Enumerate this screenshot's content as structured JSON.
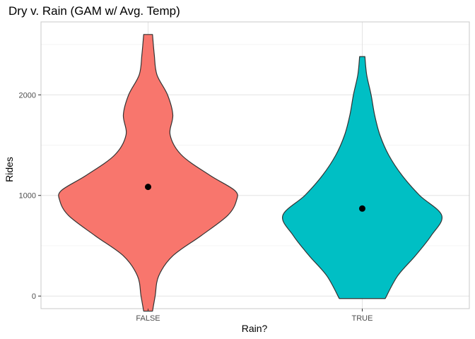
{
  "chart_data": {
    "type": "violin",
    "title": "Dry v. Rain (GAM w/ Avg. Temp)",
    "xlabel": "Rain?",
    "ylabel": "Rides",
    "categories": [
      "FALSE",
      "TRUE"
    ],
    "y_ticks": [
      0,
      1000,
      2000
    ],
    "ylim": [
      -125,
      2725
    ],
    "grid": true,
    "legend": "none",
    "series": [
      {
        "category": "FALSE",
        "color": "#F8766D",
        "mean": 1085,
        "y_min": -150,
        "y_max": 2600,
        "density": [
          {
            "y": -150,
            "w": 0.05
          },
          {
            "y": 0,
            "w": 0.08
          },
          {
            "y": 200,
            "w": 0.12
          },
          {
            "y": 400,
            "w": 0.28
          },
          {
            "y": 600,
            "w": 0.6
          },
          {
            "y": 800,
            "w": 0.9
          },
          {
            "y": 950,
            "w": 1.0
          },
          {
            "y": 1050,
            "w": 0.98
          },
          {
            "y": 1200,
            "w": 0.7
          },
          {
            "y": 1400,
            "w": 0.38
          },
          {
            "y": 1600,
            "w": 0.25
          },
          {
            "y": 1800,
            "w": 0.28
          },
          {
            "y": 2000,
            "w": 0.22
          },
          {
            "y": 2200,
            "w": 0.1
          },
          {
            "y": 2400,
            "w": 0.07
          },
          {
            "y": 2600,
            "w": 0.05
          }
        ]
      },
      {
        "category": "TRUE",
        "color": "#00BFC4",
        "mean": 870,
        "y_min": -25,
        "y_max": 2380,
        "density": [
          {
            "y": -25,
            "w": 0.26
          },
          {
            "y": 200,
            "w": 0.4
          },
          {
            "y": 400,
            "w": 0.6
          },
          {
            "y": 600,
            "w": 0.78
          },
          {
            "y": 800,
            "w": 0.9
          },
          {
            "y": 1000,
            "w": 0.65
          },
          {
            "y": 1200,
            "w": 0.45
          },
          {
            "y": 1400,
            "w": 0.3
          },
          {
            "y": 1600,
            "w": 0.2
          },
          {
            "y": 1800,
            "w": 0.14
          },
          {
            "y": 2000,
            "w": 0.1
          },
          {
            "y": 2200,
            "w": 0.05
          },
          {
            "y": 2380,
            "w": 0.03
          }
        ]
      }
    ]
  }
}
